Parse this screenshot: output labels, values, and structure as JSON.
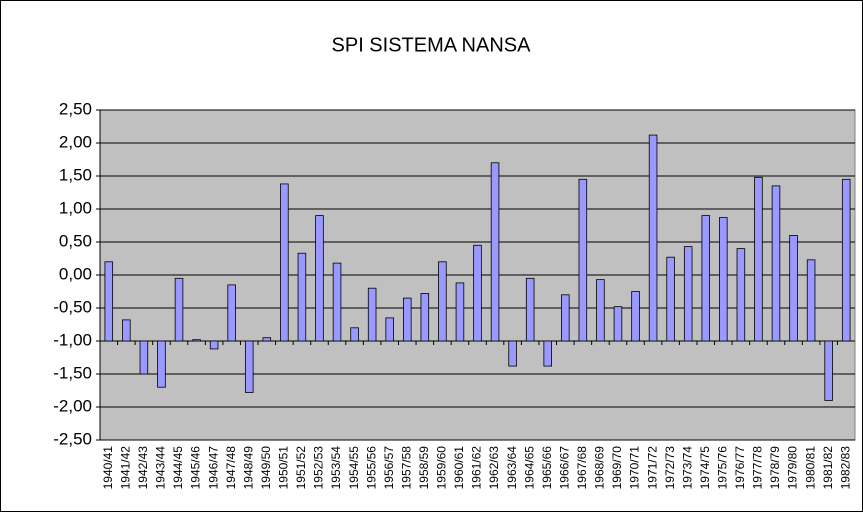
{
  "chart_data": {
    "type": "bar",
    "title": "SPI SISTEMA NANSA",
    "categories": [
      "1940/41",
      "1941/42",
      "1942/43",
      "1943/44",
      "1944/45",
      "1945/46",
      "1946/47",
      "1947/48",
      "1948/49",
      "1949/50",
      "1950/51",
      "1951/52",
      "1952/53",
      "1953/54",
      "1954/55",
      "1955/56",
      "1956/57",
      "1957/58",
      "1958/59",
      "1959/60",
      "1960/61",
      "1961/62",
      "1962/63",
      "1963/64",
      "1964/65",
      "1965/66",
      "1966/67",
      "1967/68",
      "1968/69",
      "1969/70",
      "1970/71",
      "1971/72",
      "1972/73",
      "1973/74",
      "1974/75",
      "1975/76",
      "1976/77",
      "1977/78",
      "1978/79",
      "1979/80",
      "1980/81",
      "1981/82",
      "1982/83"
    ],
    "values": [
      0.2,
      -0.68,
      -1.5,
      -1.7,
      -0.05,
      -0.98,
      -1.12,
      -0.15,
      -1.78,
      -0.95,
      1.38,
      0.33,
      0.9,
      0.18,
      -0.8,
      -0.2,
      -0.65,
      -0.35,
      -0.28,
      0.2,
      -0.12,
      0.45,
      1.7,
      -1.38,
      -0.05,
      -1.38,
      -0.3,
      1.45,
      -0.07,
      -0.48,
      -0.25,
      2.12,
      0.27,
      0.43,
      0.9,
      0.87,
      0.4,
      1.48,
      1.35,
      0.6,
      0.23,
      -1.9,
      1.45
    ],
    "color": "#9999ff",
    "baseline": -1,
    "ylim": [
      -2.5,
      2.5
    ],
    "yticks": [
      {
        "value": -2.5,
        "label": "-2,50"
      },
      {
        "value": -2,
        "label": "-2,00"
      },
      {
        "value": -1.5,
        "label": "-1,50"
      },
      {
        "value": -1,
        "label": "-1,00"
      },
      {
        "value": -0.5,
        "label": "-0,50"
      },
      {
        "value": 0,
        "label": "0,00"
      },
      {
        "value": 0.5,
        "label": "0,50"
      },
      {
        "value": 1,
        "label": "1,00"
      },
      {
        "value": 1.5,
        "label": "1,50"
      },
      {
        "value": 2,
        "label": "2,00"
      },
      {
        "value": 2.5,
        "label": "2,50"
      }
    ],
    "grid": true
  }
}
